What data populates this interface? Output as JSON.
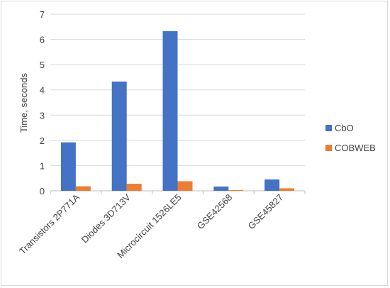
{
  "chart_data": {
    "type": "bar",
    "title": "",
    "xlabel": "",
    "ylabel": "Time, seconds",
    "ylim": [
      0,
      7
    ],
    "yticks": [
      0,
      1,
      2,
      3,
      4,
      5,
      6,
      7
    ],
    "grid": true,
    "legend_position": "right",
    "categories": [
      "Transistors 2P771A",
      "Diodes 3D713V",
      "Microcircuit 1526LE5",
      "GSE42568",
      "GSE45827"
    ],
    "series": [
      {
        "name": "CbO",
        "color": "#4472c4",
        "values": [
          1.92,
          4.33,
          6.33,
          0.17,
          0.45
        ]
      },
      {
        "name": "COBWEB",
        "color": "#ed7d31",
        "values": [
          0.18,
          0.28,
          0.38,
          0.03,
          0.1
        ]
      }
    ]
  }
}
